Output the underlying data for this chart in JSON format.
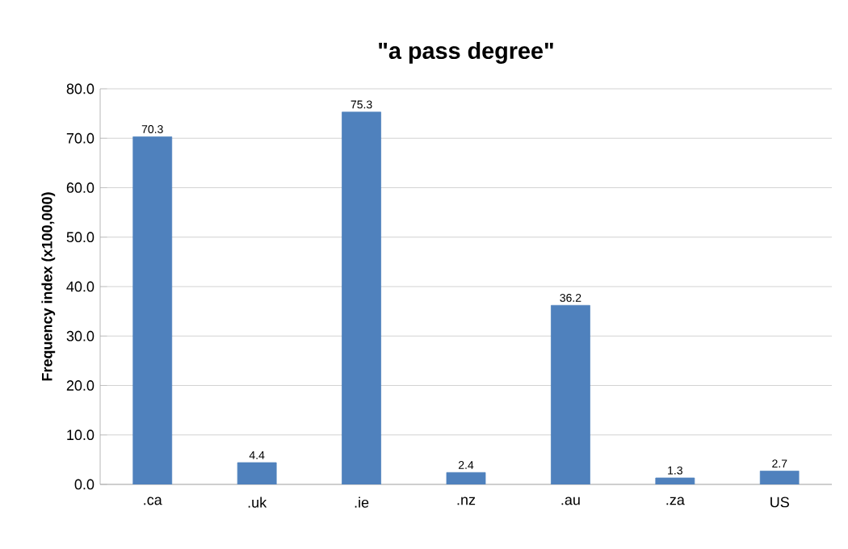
{
  "chart_data": {
    "type": "bar",
    "title": "\"a pass degree\"",
    "ylabel": "Frequency index (x100,000)",
    "categories": [
      ".ca",
      ".uk",
      ".ie",
      ".nz",
      ".au",
      ".za",
      "US"
    ],
    "values": [
      70.3,
      4.4,
      75.3,
      2.4,
      36.2,
      1.3,
      2.7
    ],
    "color": "#4f81bd",
    "ylim": [
      0,
      80
    ],
    "yticks": [
      {
        "value": 0,
        "label": "0.0"
      },
      {
        "value": 10,
        "label": "10.0"
      },
      {
        "value": 20,
        "label": "20.0"
      },
      {
        "value": 30,
        "label": "30.0"
      },
      {
        "value": 40,
        "label": "40.0"
      },
      {
        "value": 50,
        "label": "50.0"
      },
      {
        "value": 60,
        "label": "60.0"
      },
      {
        "value": 70,
        "label": "70.0"
      },
      {
        "value": 80,
        "label": "80.0"
      }
    ],
    "grid": "y",
    "data_labels": true
  }
}
